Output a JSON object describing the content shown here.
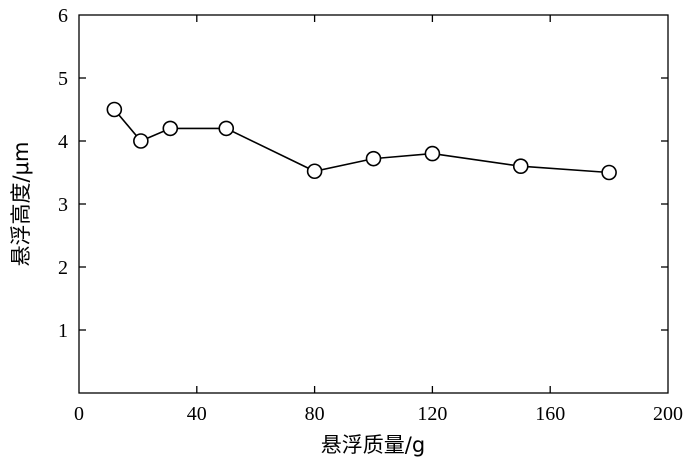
{
  "chart_data": {
    "type": "line",
    "xlabel": "悬浮质量/g",
    "ylabel": "悬浮高度/μm",
    "xlim": [
      0,
      200
    ],
    "ylim": [
      0,
      6
    ],
    "xticks": [
      0,
      40,
      80,
      120,
      160,
      200
    ],
    "yticks": [
      1,
      2,
      3,
      4,
      5,
      6
    ],
    "grid": false,
    "marker": "open-circle",
    "line_color": "#000000",
    "series": [
      {
        "x": [
          12,
          21,
          31,
          50,
          80,
          100,
          120,
          150,
          180
        ],
        "y": [
          4.5,
          4.0,
          4.2,
          4.2,
          3.52,
          3.72,
          3.8,
          3.6,
          3.5
        ]
      }
    ]
  }
}
